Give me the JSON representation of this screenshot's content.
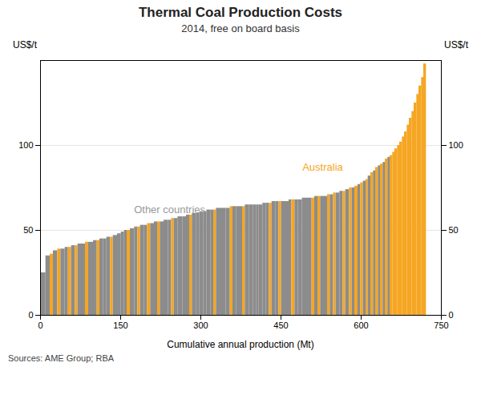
{
  "chart_data": {
    "type": "bar",
    "title": "Thermal Coal Production Costs",
    "subtitle": "2014, free on board basis",
    "xlabel": "Cumulative annual production (Mt)",
    "ylabel": "US$/t",
    "y2label": "US$/t",
    "source": "Sources: AME Group; RBA",
    "xlim": [
      0,
      750
    ],
    "xticks": [
      0,
      150,
      300,
      450,
      600,
      750
    ],
    "ylim": [
      0,
      150
    ],
    "yticks": [
      0,
      50,
      100
    ],
    "y2lim": [
      0,
      150
    ],
    "y2ticks": [
      0,
      50,
      100
    ],
    "grid": true,
    "x": [
      0,
      10,
      18,
      24,
      32,
      38,
      46,
      52,
      58,
      65,
      70,
      78,
      84,
      90,
      99,
      106,
      111,
      118,
      124,
      131,
      136,
      144,
      151,
      157,
      162,
      168,
      176,
      182,
      187,
      194,
      200,
      206,
      213,
      219,
      224,
      231,
      239,
      245,
      250,
      257,
      266,
      273,
      279,
      284,
      292,
      298,
      305,
      311,
      319,
      324,
      329,
      336,
      342,
      347,
      355,
      360,
      367,
      372,
      378,
      383,
      391,
      398,
      404,
      409,
      416,
      422,
      428,
      433,
      440,
      446,
      451,
      459,
      465,
      470,
      476,
      482,
      490,
      495,
      501,
      508,
      513,
      519,
      524,
      531,
      537,
      542,
      548,
      553,
      560,
      566,
      571,
      578,
      583,
      588,
      594,
      599,
      604,
      609,
      613,
      618,
      623,
      627,
      632,
      636,
      641,
      645,
      650,
      654,
      659,
      663,
      668,
      672,
      677,
      681,
      686,
      690,
      695,
      699,
      704,
      708,
      713,
      717
    ],
    "widths": [
      10,
      8,
      6,
      8,
      6,
      8,
      6,
      6,
      7,
      5,
      8,
      6,
      6,
      9,
      7,
      5,
      7,
      6,
      7,
      5,
      8,
      7,
      6,
      5,
      6,
      8,
      6,
      5,
      7,
      6,
      6,
      7,
      6,
      5,
      7,
      8,
      6,
      5,
      7,
      9,
      7,
      6,
      5,
      8,
      6,
      7,
      6,
      8,
      5,
      5,
      7,
      6,
      5,
      8,
      5,
      7,
      5,
      6,
      5,
      8,
      7,
      6,
      5,
      7,
      6,
      6,
      5,
      7,
      6,
      5,
      8,
      6,
      5,
      6,
      6,
      8,
      5,
      6,
      7,
      5,
      6,
      5,
      7,
      6,
      5,
      6,
      5,
      7,
      6,
      5,
      7,
      5,
      5,
      6,
      5,
      5,
      5,
      4,
      5,
      5,
      4,
      5,
      4,
      5,
      4,
      5,
      4,
      5,
      4,
      5,
      4,
      5,
      4,
      5,
      4,
      5,
      4,
      5,
      4,
      5,
      4,
      5
    ],
    "values": [
      25,
      35,
      36,
      38,
      39,
      39,
      40,
      40,
      41,
      41,
      42,
      42,
      43,
      43,
      44,
      44,
      45,
      45,
      46,
      46,
      47,
      48,
      49,
      50,
      50,
      51,
      52,
      52,
      53,
      53,
      54,
      54,
      55,
      55,
      55,
      56,
      56,
      57,
      57,
      58,
      58,
      59,
      59,
      60,
      60,
      61,
      61,
      62,
      62,
      62,
      63,
      63,
      63,
      63,
      64,
      64,
      64,
      64,
      64,
      65,
      65,
      65,
      65,
      65,
      66,
      66,
      66,
      67,
      67,
      67,
      67,
      67,
      68,
      68,
      68,
      68,
      69,
      69,
      69,
      69,
      70,
      70,
      70,
      70,
      71,
      71,
      72,
      72,
      73,
      73,
      74,
      75,
      75,
      76,
      77,
      78,
      79,
      80,
      82,
      84,
      85,
      87,
      88,
      89,
      90,
      92,
      93,
      94,
      96,
      98,
      100,
      102,
      105,
      108,
      112,
      116,
      120,
      125,
      130,
      135,
      140,
      148
    ],
    "colors": [
      "#8c8c8c",
      "#8c8c8c",
      "#f5a623",
      "#8c8c8c",
      "#f5a623",
      "#8c8c8c",
      "#8c8c8c",
      "#f5a623",
      "#8c8c8c",
      "#f5a623",
      "#8c8c8c",
      "#8c8c8c",
      "#f5a623",
      "#8c8c8c",
      "#8c8c8c",
      "#f5a623",
      "#8c8c8c",
      "#8c8c8c",
      "#8c8c8c",
      "#f5a623",
      "#8c8c8c",
      "#8c8c8c",
      "#8c8c8c",
      "#8c8c8c",
      "#f5a623",
      "#8c8c8c",
      "#8c8c8c",
      "#f5a623",
      "#8c8c8c",
      "#8c8c8c",
      "#f5a623",
      "#8c8c8c",
      "#8c8c8c",
      "#f5a623",
      "#8c8c8c",
      "#8c8c8c",
      "#8c8c8c",
      "#f5a623",
      "#8c8c8c",
      "#8c8c8c",
      "#8c8c8c",
      "#8c8c8c",
      "#f5a623",
      "#8c8c8c",
      "#8c8c8c",
      "#8c8c8c",
      "#8c8c8c",
      "#8c8c8c",
      "#8c8c8c",
      "#f5a623",
      "#8c8c8c",
      "#8c8c8c",
      "#8c8c8c",
      "#8c8c8c",
      "#f5a623",
      "#8c8c8c",
      "#8c8c8c",
      "#8c8c8c",
      "#f5a623",
      "#8c8c8c",
      "#8c8c8c",
      "#8c8c8c",
      "#8c8c8c",
      "#8c8c8c",
      "#8c8c8c",
      "#8c8c8c",
      "#f5a623",
      "#8c8c8c",
      "#8c8c8c",
      "#f5a623",
      "#8c8c8c",
      "#8c8c8c",
      "#8c8c8c",
      "#f5a623",
      "#8c8c8c",
      "#8c8c8c",
      "#8c8c8c",
      "#8c8c8c",
      "#8c8c8c",
      "#f5a623",
      "#8c8c8c",
      "#f5a623",
      "#8c8c8c",
      "#8c8c8c",
      "#f5a623",
      "#8c8c8c",
      "#f5a623",
      "#8c8c8c",
      "#8c8c8c",
      "#f5a623",
      "#8c8c8c",
      "#f5a623",
      "#8c8c8c",
      "#f5a623",
      "#8c8c8c",
      "#f5a623",
      "#8c8c8c",
      "#f5a623",
      "#8c8c8c",
      "#f5a623",
      "#8c8c8c",
      "#f5a623",
      "#8c8c8c",
      "#f5a623",
      "#8c8c8c",
      "#f5a623",
      "#8c8c8c",
      "#f5a623",
      "#f5a623",
      "#f5a623",
      "#f5a623",
      "#f5a623",
      "#f5a623",
      "#f5a623",
      "#f5a623",
      "#f5a623",
      "#f5a623",
      "#f5a623",
      "#f5a623",
      "#f5a623",
      "#f5a623",
      "#f5a623"
    ],
    "annotations": [
      {
        "text": "Other countries",
        "x": 175,
        "y": 62,
        "color": "#999999"
      },
      {
        "text": "Australia",
        "x": 490,
        "y": 87,
        "color": "#f5a623"
      }
    ]
  }
}
